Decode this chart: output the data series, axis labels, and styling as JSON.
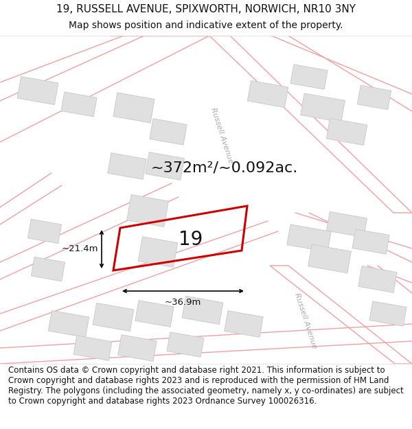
{
  "title_line1": "19, RUSSELL AVENUE, SPIXWORTH, NORWICH, NR10 3NY",
  "title_line2": "Map shows position and indicative extent of the property.",
  "footer_text": "Contains OS data © Crown copyright and database right 2021. This information is subject to Crown copyright and database rights 2023 and is reproduced with the permission of HM Land Registry. The polygons (including the associated geometry, namely x, y co-ordinates) are subject to Crown copyright and database rights 2023 Ordnance Survey 100026316.",
  "area_label": "~372m²/~0.092ac.",
  "width_label": "~36.9m",
  "height_label": "~21.4m",
  "plot_number": "19",
  "bg_color": "#ffffff",
  "road_line_color": "#f0a0a0",
  "road_fill": "#ffffff",
  "road_lw": 1.0,
  "building_fill": "#e0e0e0",
  "building_edge": "#cccccc",
  "plot_edge": "#cc0000",
  "plot_lw": 2.2,
  "street_label_color": "#aaaaaa",
  "title_fontsize": 11,
  "subtitle_fontsize": 10,
  "area_fontsize": 16,
  "plot_num_fontsize": 20,
  "footer_fontsize": 8.5
}
